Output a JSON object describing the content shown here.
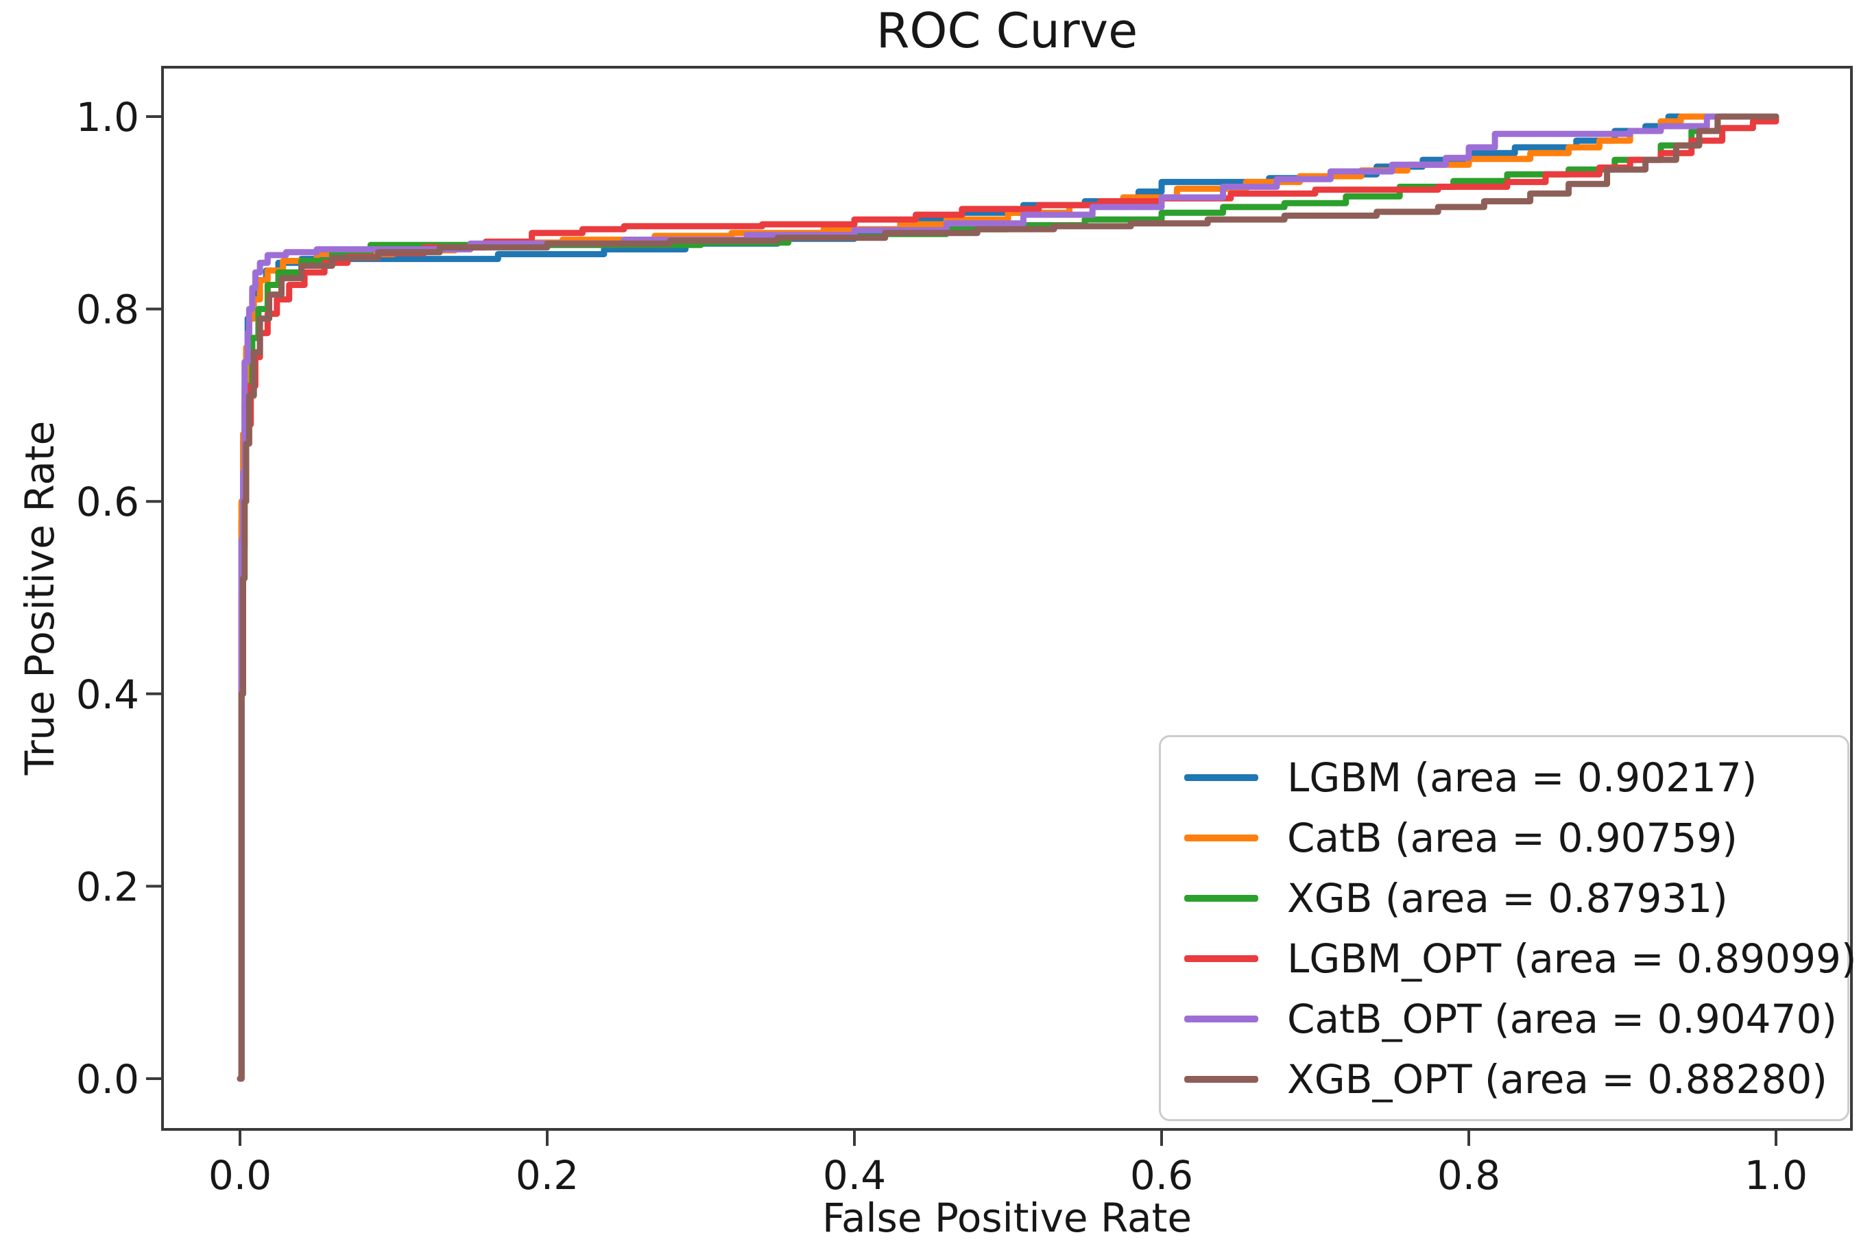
{
  "chart_data": {
    "type": "line",
    "title": "ROC Curve",
    "xlabel": "False Positive Rate",
    "ylabel": "True Positive Rate",
    "xlim": [
      -0.05,
      1.05
    ],
    "ylim": [
      -0.05,
      1.05
    ],
    "x_ticks": [
      "0.0",
      "0.2",
      "0.4",
      "0.6",
      "0.8",
      "1.0"
    ],
    "y_ticks": [
      "0.0",
      "0.2",
      "0.4",
      "0.6",
      "0.8",
      "1.0"
    ],
    "grid": false,
    "legend_position": "lower right",
    "curve_style": "step-after",
    "axis_color": "#3a3a3a",
    "legend_border_color": "#cccccc",
    "series": [
      {
        "name": "LGBM",
        "auc": 0.90217,
        "legend_label": "LGBM (area = 0.90217)",
        "color": "#1f77b4",
        "points": [
          [
            0,
            0
          ],
          [
            0.001,
            0.42
          ],
          [
            0.001,
            0.58
          ],
          [
            0.002,
            0.66
          ],
          [
            0.003,
            0.7
          ],
          [
            0.004,
            0.75
          ],
          [
            0.005,
            0.79
          ],
          [
            0.008,
            0.815
          ],
          [
            0.012,
            0.83
          ],
          [
            0.017,
            0.84
          ],
          [
            0.025,
            0.848
          ],
          [
            0.04,
            0.852
          ],
          [
            0.168,
            0.857
          ],
          [
            0.237,
            0.862
          ],
          [
            0.29,
            0.868
          ],
          [
            0.35,
            0.873
          ],
          [
            0.4,
            0.88
          ],
          [
            0.43,
            0.892
          ],
          [
            0.47,
            0.9
          ],
          [
            0.51,
            0.908
          ],
          [
            0.55,
            0.912
          ],
          [
            0.585,
            0.922
          ],
          [
            0.6,
            0.932
          ],
          [
            0.67,
            0.936
          ],
          [
            0.71,
            0.94
          ],
          [
            0.74,
            0.948
          ],
          [
            0.77,
            0.955
          ],
          [
            0.8,
            0.962
          ],
          [
            0.83,
            0.968
          ],
          [
            0.87,
            0.975
          ],
          [
            0.895,
            0.985
          ],
          [
            0.915,
            0.99
          ],
          [
            0.93,
            1.0
          ],
          [
            1.0,
            1.0
          ]
        ]
      },
      {
        "name": "CatB",
        "auc": 0.90759,
        "legend_label": "CatB (area = 0.90759)",
        "color": "#ff7f0e",
        "points": [
          [
            0,
            0
          ],
          [
            0.001,
            0.45
          ],
          [
            0.001,
            0.6
          ],
          [
            0.002,
            0.67
          ],
          [
            0.003,
            0.715
          ],
          [
            0.004,
            0.76
          ],
          [
            0.006,
            0.79
          ],
          [
            0.009,
            0.81
          ],
          [
            0.013,
            0.83
          ],
          [
            0.018,
            0.84
          ],
          [
            0.028,
            0.85
          ],
          [
            0.05,
            0.857
          ],
          [
            0.1,
            0.861
          ],
          [
            0.14,
            0.865
          ],
          [
            0.16,
            0.869
          ],
          [
            0.21,
            0.872
          ],
          [
            0.27,
            0.876
          ],
          [
            0.32,
            0.879
          ],
          [
            0.38,
            0.883
          ],
          [
            0.43,
            0.888
          ],
          [
            0.46,
            0.893
          ],
          [
            0.5,
            0.9
          ],
          [
            0.54,
            0.908
          ],
          [
            0.575,
            0.916
          ],
          [
            0.61,
            0.925
          ],
          [
            0.655,
            0.932
          ],
          [
            0.69,
            0.938
          ],
          [
            0.73,
            0.944
          ],
          [
            0.76,
            0.95
          ],
          [
            0.8,
            0.956
          ],
          [
            0.84,
            0.962
          ],
          [
            0.865,
            0.968
          ],
          [
            0.885,
            0.975
          ],
          [
            0.905,
            0.985
          ],
          [
            0.925,
            0.995
          ],
          [
            0.938,
            1.0
          ],
          [
            1.0,
            1.0
          ]
        ]
      },
      {
        "name": "XGB",
        "auc": 0.87931,
        "legend_label": "XGB (area = 0.87931)",
        "color": "#2ca02c",
        "points": [
          [
            0,
            0
          ],
          [
            0.001,
            0.4
          ],
          [
            0.002,
            0.55
          ],
          [
            0.002,
            0.62
          ],
          [
            0.004,
            0.68
          ],
          [
            0.005,
            0.72
          ],
          [
            0.008,
            0.77
          ],
          [
            0.012,
            0.8
          ],
          [
            0.018,
            0.825
          ],
          [
            0.025,
            0.838
          ],
          [
            0.04,
            0.85
          ],
          [
            0.06,
            0.858
          ],
          [
            0.085,
            0.8665
          ],
          [
            0.3,
            0.869
          ],
          [
            0.357,
            0.875
          ],
          [
            0.42,
            0.878
          ],
          [
            0.46,
            0.883
          ],
          [
            0.5,
            0.887
          ],
          [
            0.55,
            0.893
          ],
          [
            0.6,
            0.9
          ],
          [
            0.64,
            0.906
          ],
          [
            0.68,
            0.91
          ],
          [
            0.72,
            0.917
          ],
          [
            0.755,
            0.927
          ],
          [
            0.79,
            0.933
          ],
          [
            0.825,
            0.94
          ],
          [
            0.865,
            0.945
          ],
          [
            0.895,
            0.955
          ],
          [
            0.925,
            0.97
          ],
          [
            0.945,
            0.985
          ],
          [
            0.962,
            1.0
          ],
          [
            1.0,
            1.0
          ]
        ]
      },
      {
        "name": "LGBM_OPT",
        "auc": 0.89099,
        "legend_label": "LGBM_OPT (area = 0.89099)",
        "color": "#ea3b3e",
        "points": [
          [
            0,
            0
          ],
          [
            0.001,
            0.38
          ],
          [
            0.001,
            0.5
          ],
          [
            0.002,
            0.55
          ],
          [
            0.003,
            0.62
          ],
          [
            0.004,
            0.68
          ],
          [
            0.007,
            0.72
          ],
          [
            0.01,
            0.75
          ],
          [
            0.013,
            0.775
          ],
          [
            0.018,
            0.795
          ],
          [
            0.024,
            0.81
          ],
          [
            0.032,
            0.825
          ],
          [
            0.042,
            0.838
          ],
          [
            0.055,
            0.848
          ],
          [
            0.07,
            0.854
          ],
          [
            0.09,
            0.858
          ],
          [
            0.12,
            0.864
          ],
          [
            0.16,
            0.87
          ],
          [
            0.19,
            0.879
          ],
          [
            0.223,
            0.883
          ],
          [
            0.25,
            0.886
          ],
          [
            0.34,
            0.888
          ],
          [
            0.4,
            0.893
          ],
          [
            0.44,
            0.898
          ],
          [
            0.47,
            0.904
          ],
          [
            0.52,
            0.908
          ],
          [
            0.56,
            0.912
          ],
          [
            0.6,
            0.915
          ],
          [
            0.645,
            0.92
          ],
          [
            0.7,
            0.924
          ],
          [
            0.78,
            0.927
          ],
          [
            0.825,
            0.932
          ],
          [
            0.85,
            0.94
          ],
          [
            0.885,
            0.947
          ],
          [
            0.905,
            0.955
          ],
          [
            0.925,
            0.962
          ],
          [
            0.945,
            0.975
          ],
          [
            0.965,
            0.988
          ],
          [
            0.985,
            0.995
          ],
          [
            1.0,
            1.0
          ]
        ]
      },
      {
        "name": "CatB_OPT",
        "auc": 0.9047,
        "legend_label": "CatB_OPT (area = 0.90470)",
        "color": "#9d6fd6",
        "points": [
          [
            0,
            0
          ],
          [
            0.001,
            0.44
          ],
          [
            0.001,
            0.56
          ],
          [
            0.002,
            0.63
          ],
          [
            0.003,
            0.7
          ],
          [
            0.003,
            0.745
          ],
          [
            0.005,
            0.775
          ],
          [
            0.006,
            0.8
          ],
          [
            0.008,
            0.822
          ],
          [
            0.01,
            0.838
          ],
          [
            0.013,
            0.848
          ],
          [
            0.018,
            0.856
          ],
          [
            0.03,
            0.859
          ],
          [
            0.05,
            0.862
          ],
          [
            0.15,
            0.868
          ],
          [
            0.25,
            0.872
          ],
          [
            0.33,
            0.877
          ],
          [
            0.4,
            0.882
          ],
          [
            0.46,
            0.889
          ],
          [
            0.51,
            0.898
          ],
          [
            0.555,
            0.906
          ],
          [
            0.6,
            0.916
          ],
          [
            0.64,
            0.927
          ],
          [
            0.675,
            0.935
          ],
          [
            0.71,
            0.943
          ],
          [
            0.75,
            0.95
          ],
          [
            0.785,
            0.957
          ],
          [
            0.8,
            0.968
          ],
          [
            0.817,
            0.982
          ],
          [
            0.905,
            0.985
          ],
          [
            0.925,
            0.99
          ],
          [
            0.955,
            1.0
          ],
          [
            1.0,
            1.0
          ]
        ]
      },
      {
        "name": "XGB_OPT",
        "auc": 0.8828,
        "legend_label": "XGB_OPT (area = 0.88280)",
        "color": "#8e5f58",
        "points": [
          [
            0,
            0
          ],
          [
            0.001,
            0.4
          ],
          [
            0.002,
            0.52
          ],
          [
            0.003,
            0.6
          ],
          [
            0.004,
            0.66
          ],
          [
            0.006,
            0.71
          ],
          [
            0.009,
            0.755
          ],
          [
            0.013,
            0.79
          ],
          [
            0.019,
            0.815
          ],
          [
            0.027,
            0.832
          ],
          [
            0.04,
            0.845
          ],
          [
            0.06,
            0.853
          ],
          [
            0.09,
            0.859
          ],
          [
            0.13,
            0.864
          ],
          [
            0.2,
            0.868
          ],
          [
            0.28,
            0.871
          ],
          [
            0.35,
            0.874
          ],
          [
            0.42,
            0.879
          ],
          [
            0.48,
            0.883
          ],
          [
            0.53,
            0.886
          ],
          [
            0.58,
            0.889
          ],
          [
            0.63,
            0.893
          ],
          [
            0.68,
            0.897
          ],
          [
            0.74,
            0.901
          ],
          [
            0.78,
            0.906
          ],
          [
            0.81,
            0.912
          ],
          [
            0.84,
            0.92
          ],
          [
            0.865,
            0.93
          ],
          [
            0.89,
            0.945
          ],
          [
            0.915,
            0.955
          ],
          [
            0.935,
            0.97
          ],
          [
            0.95,
            0.985
          ],
          [
            0.962,
            1.0
          ],
          [
            1.0,
            1.0
          ]
        ]
      }
    ]
  }
}
